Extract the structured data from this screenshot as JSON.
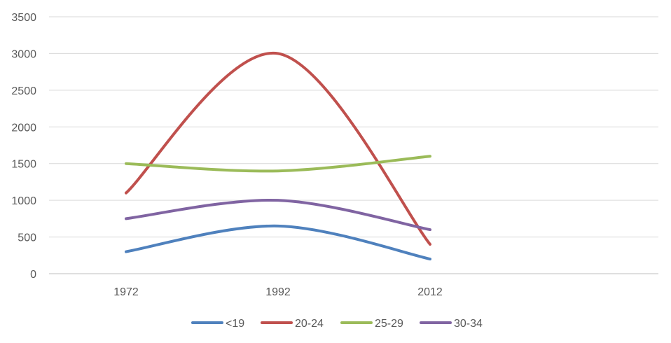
{
  "chart_data": {
    "type": "line",
    "smooth": true,
    "categories": [
      "1972",
      "1992",
      "2012"
    ],
    "ylim": [
      0,
      3500
    ],
    "yticks": [
      0,
      500,
      1000,
      1500,
      2000,
      2500,
      3000,
      3500
    ],
    "grid": true,
    "legend_position": "bottom",
    "series": [
      {
        "name": "<19",
        "color": "#4f81bd",
        "values": [
          300,
          650,
          200
        ]
      },
      {
        "name": "20-24",
        "color": "#c0504d",
        "values": [
          1100,
          3000,
          400
        ]
      },
      {
        "name": "25-29",
        "color": "#9bbb59",
        "values": [
          1500,
          1400,
          1600
        ]
      },
      {
        "name": "30-34",
        "color": "#8064a2",
        "values": [
          750,
          1000,
          600
        ]
      }
    ]
  }
}
